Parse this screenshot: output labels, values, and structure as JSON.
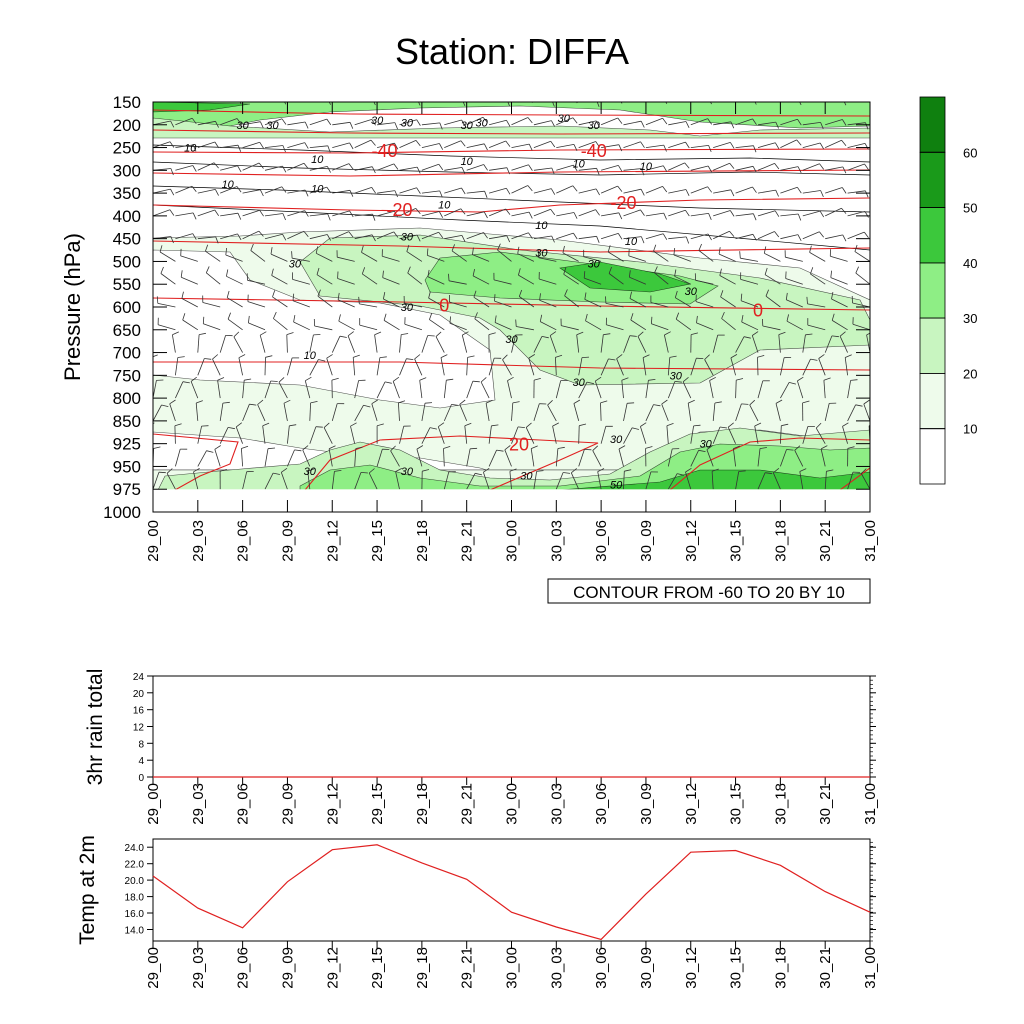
{
  "title": "Station: DIFFA",
  "contour_info": "CONTOUR FROM -60 TO 20 BY 10",
  "colors": {
    "level_1": "#ffffff",
    "level_2": "#eefbeb",
    "level_3": "#c8f5c0",
    "level_4": "#8eee85",
    "level_5": "#3cc83c",
    "level_6": "#1a9a1a",
    "temp_contour": "#e02020",
    "rh_contour": "#000000",
    "line": "#e02020"
  },
  "time_labels": [
    "29_00",
    "29_03",
    "29_06",
    "29_09",
    "29_12",
    "29_15",
    "29_18",
    "29_21",
    "30_00",
    "30_03",
    "30_06",
    "30_09",
    "30_12",
    "30_15",
    "30_18",
    "30_21",
    "31_00"
  ],
  "chart_data": [
    {
      "type": "heatmap",
      "title": "Station: DIFFA",
      "ylabel": "Pressure (hPa)",
      "pressure_levels": [
        150,
        200,
        250,
        300,
        350,
        400,
        450,
        500,
        550,
        600,
        650,
        700,
        750,
        800,
        850,
        925,
        950,
        975,
        1000
      ],
      "colorbar": {
        "ticks": [
          10,
          20,
          30,
          40,
          50,
          60
        ],
        "colors": [
          "#ffffff",
          "#eefbeb",
          "#c8f5c0",
          "#8eee85",
          "#3cc83c",
          "#1a9a1a",
          "#0f800f"
        ]
      },
      "rh_contour_labels": [
        {
          "t": 2.5,
          "p": 250,
          "v": "10"
        },
        {
          "t": 6,
          "p": 200,
          "v": "30"
        },
        {
          "t": 8,
          "p": 200,
          "v": "30"
        },
        {
          "t": 15,
          "p": 190,
          "v": "30"
        },
        {
          "t": 17,
          "p": 195,
          "v": "30"
        },
        {
          "t": 21,
          "p": 200,
          "v": "30"
        },
        {
          "t": 22,
          "p": 195,
          "v": "30"
        },
        {
          "t": 27.5,
          "p": 185,
          "v": "30"
        },
        {
          "t": 29.5,
          "p": 200,
          "v": "30"
        },
        {
          "t": 5,
          "p": 330,
          "v": "10"
        },
        {
          "t": 11,
          "p": 275,
          "v": "10"
        },
        {
          "t": 11,
          "p": 340,
          "v": "10"
        },
        {
          "t": 19.5,
          "p": 375,
          "v": "10"
        },
        {
          "t": 21,
          "p": 280,
          "v": "10"
        },
        {
          "t": 26,
          "p": 420,
          "v": "10"
        },
        {
          "t": 28.5,
          "p": 285,
          "v": "10"
        },
        {
          "t": 32,
          "p": 455,
          "v": "10"
        },
        {
          "t": 33,
          "p": 290,
          "v": "10"
        },
        {
          "t": 17,
          "p": 445,
          "v": "30"
        },
        {
          "t": 9.5,
          "p": 505,
          "v": "30"
        },
        {
          "t": 26,
          "p": 480,
          "v": "30"
        },
        {
          "t": 29.5,
          "p": 505,
          "v": "30"
        },
        {
          "t": 36,
          "p": 565,
          "v": "30"
        },
        {
          "t": 17,
          "p": 600,
          "v": "30"
        },
        {
          "t": 24,
          "p": 670,
          "v": "30"
        },
        {
          "t": 10.5,
          "p": 705,
          "v": "10"
        },
        {
          "t": 28.5,
          "p": 765,
          "v": "30"
        },
        {
          "t": 35,
          "p": 750,
          "v": "30"
        },
        {
          "t": 31,
          "p": 910,
          "v": "30"
        },
        {
          "t": 37,
          "p": 925,
          "v": "30"
        },
        {
          "t": 10.5,
          "p": 955,
          "v": "30"
        },
        {
          "t": 17,
          "p": 955,
          "v": "30"
        },
        {
          "t": 25,
          "p": 960,
          "v": "30"
        },
        {
          "t": 31,
          "p": 970,
          "v": "50"
        }
      ],
      "temp_contour_labels": [
        {
          "t": 15.5,
          "p": 255,
          "v": "-40"
        },
        {
          "t": 29.5,
          "p": 255,
          "v": "-40"
        },
        {
          "t": 16.5,
          "p": 385,
          "v": "-20"
        },
        {
          "t": 31.5,
          "p": 370,
          "v": "-20"
        },
        {
          "t": 19.5,
          "p": 595,
          "v": "0"
        },
        {
          "t": 40.5,
          "p": 605,
          "v": "0"
        },
        {
          "t": 24.5,
          "p": 925,
          "v": "20"
        }
      ]
    },
    {
      "type": "line",
      "ylabel": "3hr rain total",
      "ylim": [
        0,
        24
      ],
      "yticks": [
        0,
        4,
        8,
        12,
        16,
        20,
        24
      ],
      "x": [
        "29_00",
        "29_03",
        "29_06",
        "29_09",
        "29_12",
        "29_15",
        "29_18",
        "29_21",
        "30_00",
        "30_03",
        "30_06",
        "30_09",
        "30_12",
        "30_15",
        "30_18",
        "30_21",
        "31_00"
      ],
      "values": [
        0,
        0,
        0,
        0,
        0,
        0,
        0,
        0,
        0,
        0,
        0,
        0,
        0,
        0,
        0,
        0,
        0
      ]
    },
    {
      "type": "line",
      "ylabel": "Temp at 2m",
      "ylim": [
        12.6,
        25.0
      ],
      "yticks": [
        14.0,
        16.0,
        18.0,
        20.0,
        22.0,
        24.0
      ],
      "ytick_labels": [
        "14.0",
        "16.0",
        "18.0",
        "20.0",
        "22.0",
        "24.0"
      ],
      "x": [
        "29_00",
        "29_03",
        "29_06",
        "29_09",
        "29_12",
        "29_15",
        "29_18",
        "29_21",
        "30_00",
        "30_03",
        "30_06",
        "30_09",
        "30_12",
        "30_15",
        "30_18",
        "30_21",
        "31_00"
      ],
      "values": [
        20.5,
        16.6,
        14.2,
        19.8,
        23.7,
        24.3,
        22.1,
        20.1,
        16.1,
        14.3,
        12.8,
        18.3,
        23.4,
        23.6,
        21.8,
        18.6,
        16.1
      ]
    }
  ]
}
